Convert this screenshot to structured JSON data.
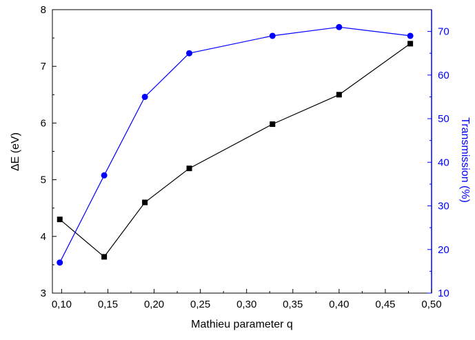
{
  "chart_data": {
    "type": "line",
    "xlabel": "Mathieu parameter q",
    "ylabel_left": "ΔE (eV)",
    "ylabel_right": "Transmission (%)",
    "xlim": [
      0.09,
      0.5
    ],
    "ylim_left": [
      3,
      8
    ],
    "ylim_right": [
      10,
      75
    ],
    "x_ticks": [
      "0,10",
      "0,15",
      "0,20",
      "0,25",
      "0,30",
      "0,35",
      "0,40",
      "0,45",
      "0,50"
    ],
    "x_tick_values": [
      0.1,
      0.15,
      0.2,
      0.25,
      0.3,
      0.35,
      0.4,
      0.45,
      0.5
    ],
    "y_left_ticks": [
      "3",
      "4",
      "5",
      "6",
      "7",
      "8"
    ],
    "y_left_tick_values": [
      3,
      4,
      5,
      6,
      7,
      8
    ],
    "y_right_ticks": [
      "10",
      "20",
      "30",
      "40",
      "50",
      "60",
      "70"
    ],
    "y_right_tick_values": [
      10,
      20,
      30,
      40,
      50,
      60,
      70
    ],
    "grid": false,
    "series": [
      {
        "axis": "left",
        "color": "#000000",
        "marker": "square",
        "x": [
          0.098,
          0.146,
          0.19,
          0.238,
          0.328,
          0.4,
          0.477
        ],
        "values": [
          4.3,
          3.64,
          4.6,
          5.2,
          5.98,
          6.5,
          7.4
        ]
      },
      {
        "axis": "right",
        "color": "#0000ff",
        "marker": "circle",
        "x": [
          0.098,
          0.146,
          0.19,
          0.238,
          0.328,
          0.4,
          0.477
        ],
        "values": [
          17,
          37,
          55,
          65,
          69,
          71,
          69
        ]
      }
    ]
  }
}
